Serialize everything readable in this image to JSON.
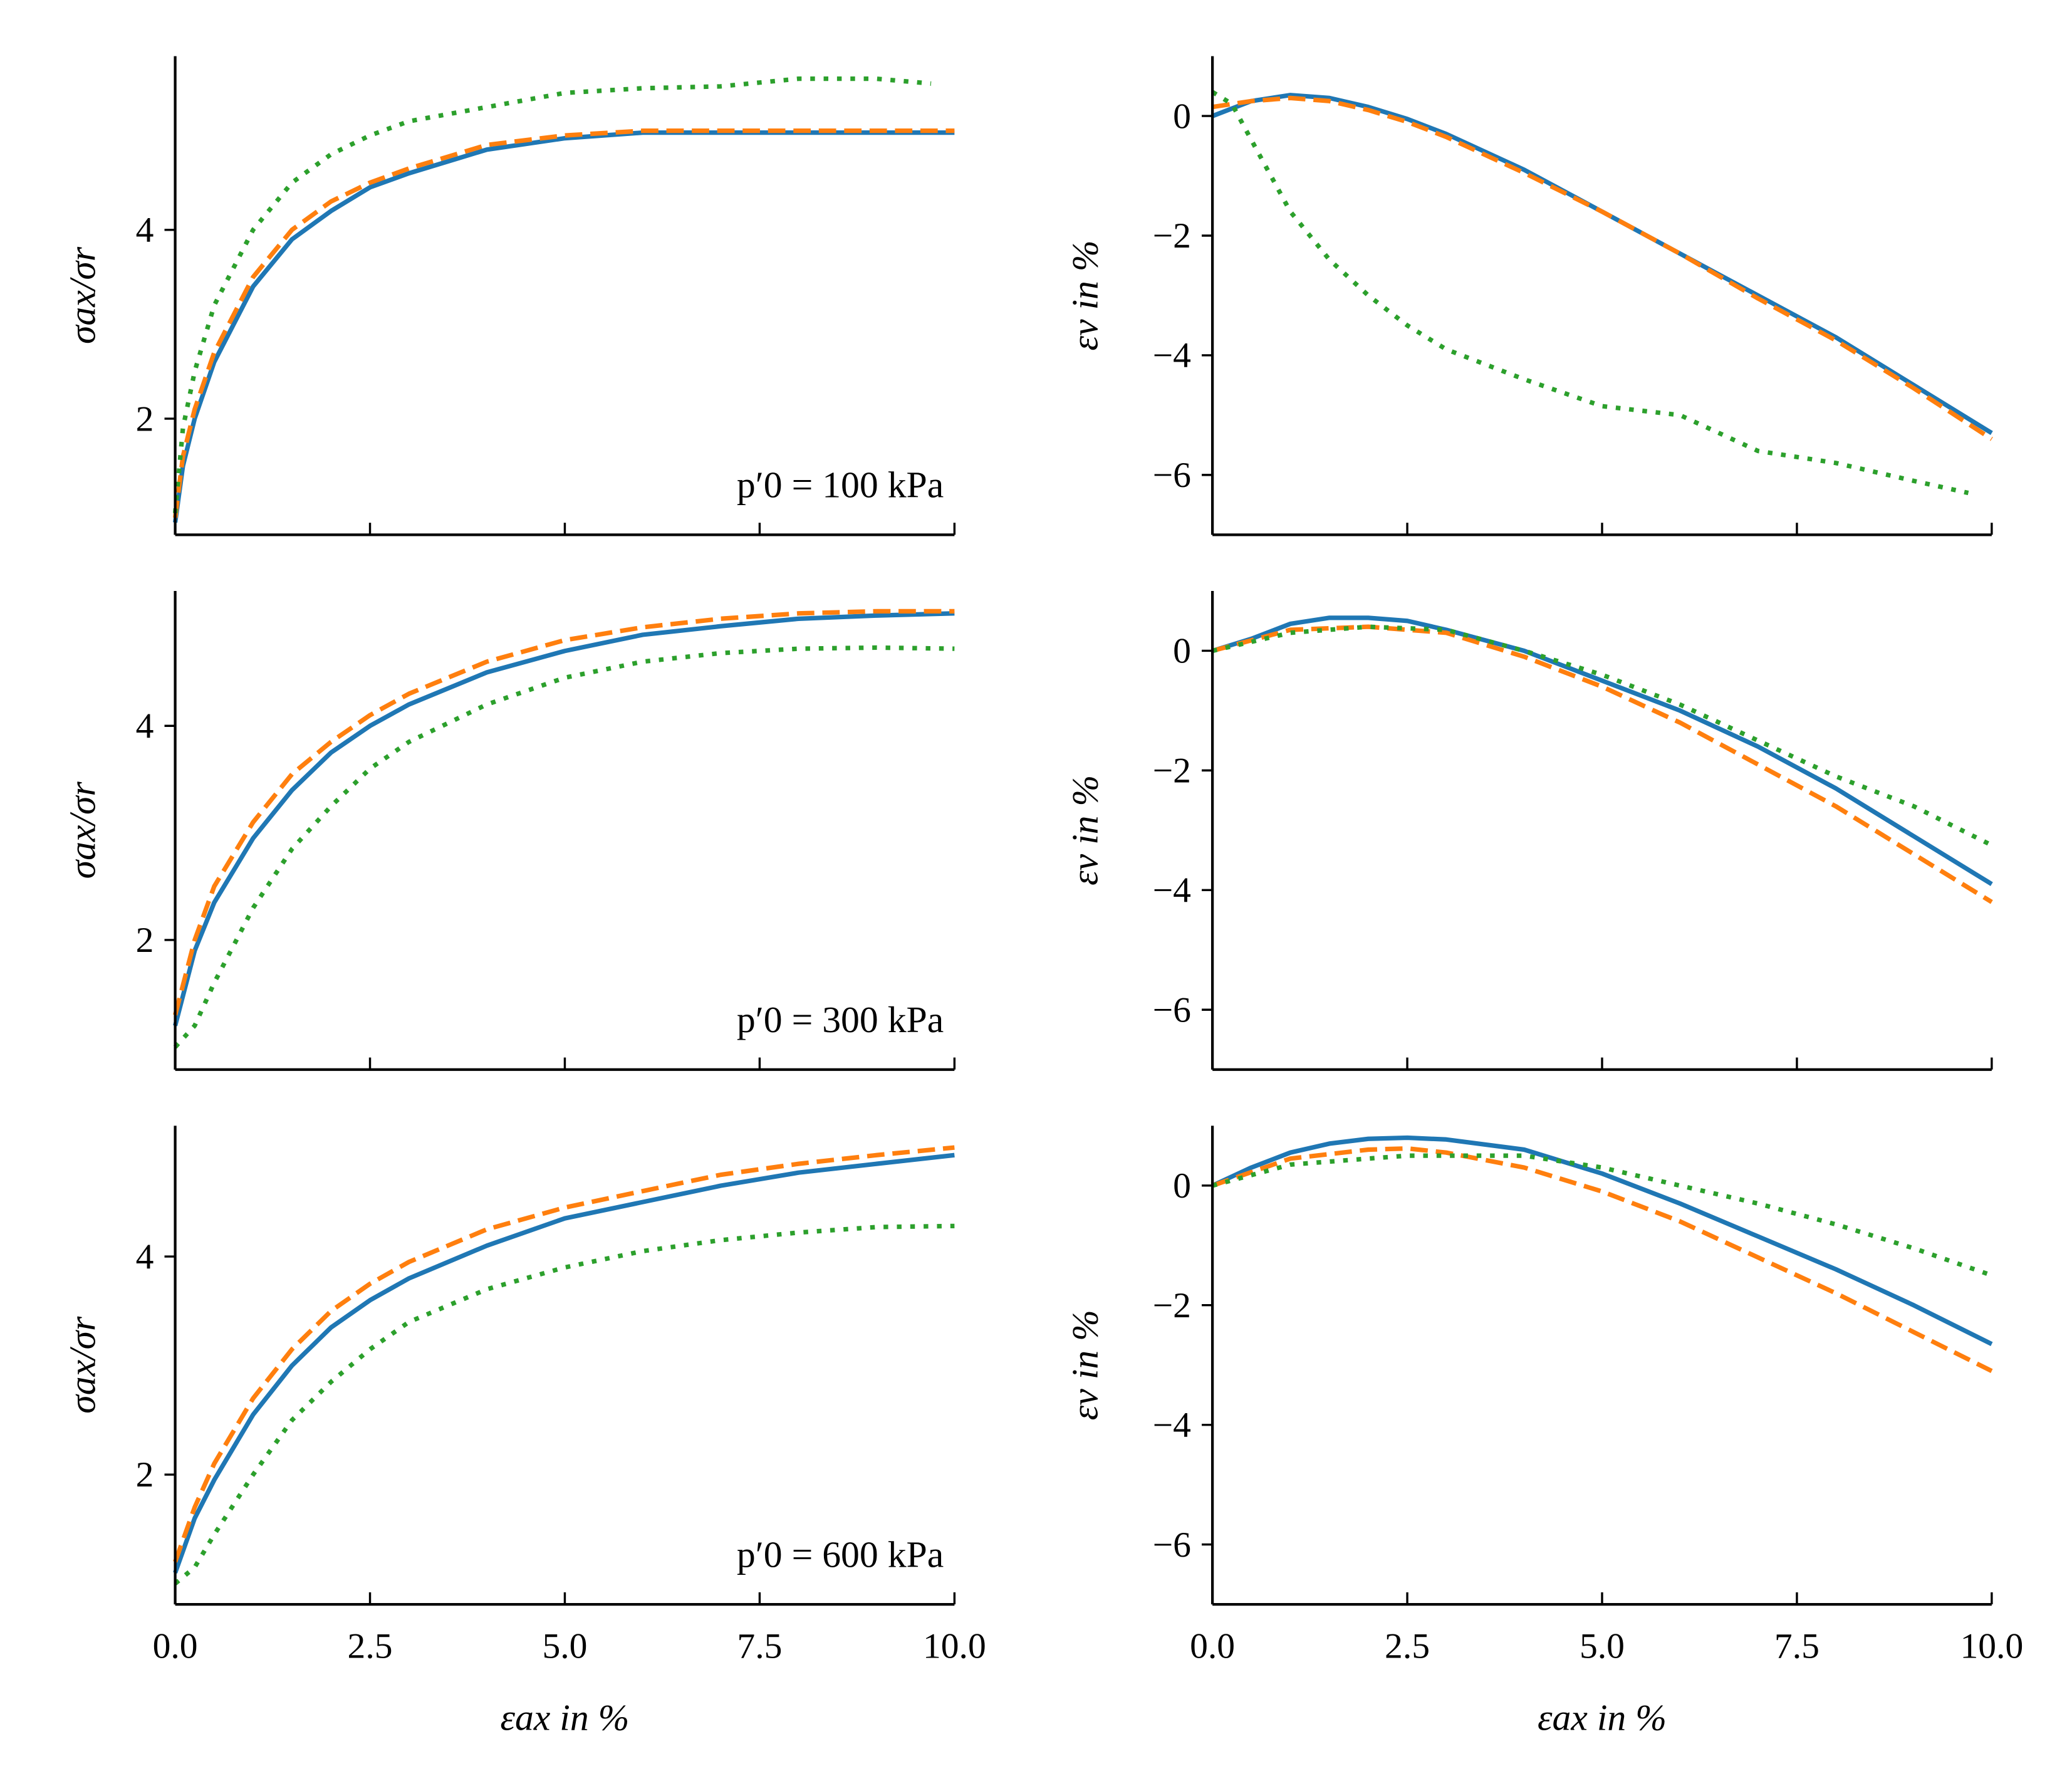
{
  "colors": {
    "series_1": "#1f77b4",
    "series_2": "#ff7f0e",
    "series_3": "#2ca02c"
  },
  "chart_data": [
    {
      "type": "line",
      "panel": "row1-left",
      "ylabel": "σax/σr",
      "xlabel": "",
      "annotation": "p′0 = 100 kPa",
      "xlim": [
        0,
        10
      ],
      "ylim": [
        0.77,
        5.84
      ],
      "xticks": [
        0,
        2.5,
        5,
        7.5,
        10
      ],
      "yticks": [
        2,
        4
      ],
      "show_xticklabels": false,
      "series": [
        {
          "style": "solid",
          "x": [
            0,
            0.1,
            0.25,
            0.5,
            1,
            1.5,
            2,
            2.5,
            3,
            4,
            5,
            6,
            7,
            8,
            9,
            10
          ],
          "y": [
            0.9,
            1.5,
            2.0,
            2.6,
            3.4,
            3.9,
            4.2,
            4.45,
            4.6,
            4.85,
            4.97,
            5.03,
            5.03,
            5.03,
            5.03,
            5.03
          ]
        },
        {
          "style": "dashed",
          "x": [
            0,
            0.1,
            0.25,
            0.5,
            1,
            1.5,
            2,
            2.5,
            3,
            4,
            5,
            6,
            7,
            8,
            9,
            10
          ],
          "y": [
            0.95,
            1.6,
            2.1,
            2.7,
            3.5,
            4.0,
            4.3,
            4.5,
            4.65,
            4.9,
            5.0,
            5.05,
            5.05,
            5.05,
            5.05,
            5.05
          ]
        },
        {
          "style": "dotted",
          "x": [
            0,
            0.1,
            0.25,
            0.5,
            1,
            1.5,
            2,
            2.5,
            3,
            4,
            5,
            6,
            7,
            8,
            9,
            9.7
          ],
          "y": [
            1.0,
            1.9,
            2.5,
            3.2,
            4.0,
            4.5,
            4.8,
            5.0,
            5.15,
            5.3,
            5.45,
            5.5,
            5.52,
            5.6,
            5.6,
            5.55
          ]
        }
      ]
    },
    {
      "type": "line",
      "panel": "row1-right",
      "ylabel": "εv in %",
      "xlabel": "",
      "xlim": [
        0,
        10
      ],
      "ylim": [
        -7,
        1
      ],
      "xticks": [
        0,
        2.5,
        5,
        7.5,
        10
      ],
      "yticks": [
        0,
        -2,
        -4,
        -6
      ],
      "show_xticklabels": false,
      "series": [
        {
          "style": "solid",
          "x": [
            0,
            0.5,
            1,
            1.5,
            2,
            2.5,
            3,
            4,
            5,
            6,
            7,
            8,
            9,
            10
          ],
          "y": [
            0,
            0.25,
            0.35,
            0.3,
            0.15,
            -0.05,
            -0.3,
            -0.9,
            -1.6,
            -2.3,
            -3.0,
            -3.7,
            -4.5,
            -5.3
          ]
        },
        {
          "style": "dashed",
          "x": [
            0,
            0.5,
            1,
            1.5,
            2,
            2.5,
            3,
            4,
            5,
            6,
            7,
            8,
            9,
            10
          ],
          "y": [
            0.15,
            0.25,
            0.3,
            0.25,
            0.1,
            -0.1,
            -0.35,
            -0.95,
            -1.6,
            -2.3,
            -3.05,
            -3.75,
            -4.55,
            -5.4
          ]
        },
        {
          "style": "dotted",
          "x": [
            0,
            0.25,
            0.5,
            1,
            1.5,
            2,
            2.5,
            3,
            4,
            5,
            6,
            7,
            8,
            9,
            9.7
          ],
          "y": [
            0.4,
            0.2,
            -0.4,
            -1.6,
            -2.4,
            -3.0,
            -3.5,
            -3.9,
            -4.4,
            -4.85,
            -5.0,
            -5.6,
            -5.8,
            -6.1,
            -6.3
          ]
        }
      ]
    },
    {
      "type": "line",
      "panel": "row2-left",
      "ylabel": "σax/σr",
      "xlabel": "",
      "annotation": "p′0 = 300 kPa",
      "xlim": [
        0,
        10
      ],
      "ylim": [
        0.79,
        5.26
      ],
      "xticks": [
        0,
        2.5,
        5,
        7.5,
        10
      ],
      "yticks": [
        2,
        4
      ],
      "show_xticklabels": false,
      "series": [
        {
          "style": "solid",
          "x": [
            0,
            0.25,
            0.5,
            1,
            1.5,
            2,
            2.5,
            3,
            4,
            5,
            6,
            7,
            8,
            9,
            10
          ],
          "y": [
            1.2,
            1.9,
            2.35,
            2.95,
            3.4,
            3.75,
            4.0,
            4.2,
            4.5,
            4.7,
            4.85,
            4.93,
            5.0,
            5.03,
            5.05
          ]
        },
        {
          "style": "dashed",
          "x": [
            0,
            0.25,
            0.5,
            1,
            1.5,
            2,
            2.5,
            3,
            4,
            5,
            6,
            7,
            8,
            9,
            10
          ],
          "y": [
            1.3,
            2.0,
            2.5,
            3.1,
            3.55,
            3.85,
            4.1,
            4.3,
            4.6,
            4.8,
            4.92,
            5.0,
            5.05,
            5.07,
            5.07
          ]
        },
        {
          "style": "dotted",
          "x": [
            0,
            0.25,
            0.5,
            1,
            1.5,
            2,
            2.5,
            3,
            4,
            5,
            6,
            7,
            8,
            9,
            10
          ],
          "y": [
            1.0,
            1.2,
            1.6,
            2.3,
            2.85,
            3.25,
            3.6,
            3.85,
            4.2,
            4.45,
            4.6,
            4.68,
            4.72,
            4.73,
            4.72
          ]
        }
      ]
    },
    {
      "type": "line",
      "panel": "row2-right",
      "ylabel": "εv in %",
      "xlabel": "",
      "xlim": [
        0,
        10
      ],
      "ylim": [
        -7,
        1
      ],
      "xticks": [
        0,
        2.5,
        5,
        7.5,
        10
      ],
      "yticks": [
        0,
        -2,
        -4,
        -6
      ],
      "show_xticklabels": false,
      "series": [
        {
          "style": "solid",
          "x": [
            0,
            0.5,
            1,
            1.5,
            2,
            2.5,
            3,
            4,
            5,
            6,
            7,
            8,
            9,
            10
          ],
          "y": [
            0,
            0.2,
            0.45,
            0.55,
            0.55,
            0.5,
            0.35,
            0,
            -0.5,
            -1.0,
            -1.6,
            -2.3,
            -3.1,
            -3.9
          ]
        },
        {
          "style": "dashed",
          "x": [
            0,
            1,
            2,
            3,
            4,
            5,
            6,
            7,
            8,
            9,
            10
          ],
          "y": [
            0,
            0.35,
            0.4,
            0.3,
            -0.1,
            -0.6,
            -1.2,
            -1.9,
            -2.6,
            -3.4,
            -4.2
          ]
        },
        {
          "style": "dotted",
          "x": [
            0,
            1,
            2,
            3,
            4,
            5,
            6,
            7,
            8,
            9,
            10
          ],
          "y": [
            0,
            0.3,
            0.4,
            0.35,
            0,
            -0.4,
            -0.9,
            -1.5,
            -2.1,
            -2.6,
            -3.25
          ]
        }
      ]
    },
    {
      "type": "line",
      "panel": "row3-left",
      "ylabel": "σax/σr",
      "xlabel": "εax in %",
      "annotation": "p′0 = 600 kPa",
      "xlim": [
        0,
        10
      ],
      "ylim": [
        0.81,
        5.2
      ],
      "xticks": [
        0,
        2.5,
        5,
        7.5,
        10
      ],
      "xticklabels": [
        "0.0",
        "2.5",
        "5.0",
        "7.5",
        "10.0"
      ],
      "yticks": [
        2,
        4
      ],
      "show_xticklabels": true,
      "series": [
        {
          "style": "solid",
          "x": [
            0,
            0.25,
            0.5,
            1,
            1.5,
            2,
            2.5,
            3,
            4,
            5,
            6,
            7,
            8,
            9,
            10
          ],
          "y": [
            1.1,
            1.6,
            1.95,
            2.55,
            3.0,
            3.35,
            3.6,
            3.8,
            4.1,
            4.35,
            4.5,
            4.65,
            4.77,
            4.85,
            4.93
          ]
        },
        {
          "style": "dashed",
          "x": [
            0,
            0.25,
            0.5,
            1,
            1.5,
            2,
            2.5,
            3,
            4,
            5,
            6,
            7,
            8,
            9,
            10
          ],
          "y": [
            1.2,
            1.7,
            2.1,
            2.7,
            3.15,
            3.5,
            3.75,
            3.95,
            4.25,
            4.45,
            4.6,
            4.75,
            4.85,
            4.93,
            5.0
          ]
        },
        {
          "style": "dotted",
          "x": [
            0,
            0.25,
            0.5,
            1,
            1.5,
            2,
            2.5,
            3,
            4,
            5,
            6,
            7,
            8,
            9,
            10
          ],
          "y": [
            1.0,
            1.15,
            1.45,
            2.0,
            2.5,
            2.85,
            3.15,
            3.4,
            3.7,
            3.9,
            4.05,
            4.15,
            4.22,
            4.27,
            4.28
          ]
        }
      ]
    },
    {
      "type": "line",
      "panel": "row3-right",
      "ylabel": "εv in %",
      "xlabel": "εax in %",
      "xlim": [
        0,
        10
      ],
      "ylim": [
        -7,
        1
      ],
      "xticks": [
        0,
        2.5,
        5,
        7.5,
        10
      ],
      "xticklabels": [
        "0.0",
        "2.5",
        "5.0",
        "7.5",
        "10.0"
      ],
      "yticks": [
        0,
        -2,
        -4,
        -6
      ],
      "show_xticklabels": true,
      "series": [
        {
          "style": "solid",
          "x": [
            0,
            0.5,
            1,
            1.5,
            2,
            2.5,
            3,
            4,
            5,
            6,
            7,
            8,
            9,
            10
          ],
          "y": [
            0,
            0.3,
            0.55,
            0.7,
            0.78,
            0.8,
            0.77,
            0.6,
            0.2,
            -0.3,
            -0.85,
            -1.4,
            -2.0,
            -2.65
          ]
        },
        {
          "style": "dashed",
          "x": [
            0,
            1,
            2,
            2.5,
            3,
            4,
            5,
            6,
            7,
            8,
            9,
            10
          ],
          "y": [
            0,
            0.45,
            0.6,
            0.62,
            0.55,
            0.3,
            -0.1,
            -0.6,
            -1.2,
            -1.8,
            -2.45,
            -3.1
          ]
        },
        {
          "style": "dotted",
          "x": [
            0,
            1,
            2,
            2.5,
            3,
            4,
            5,
            6,
            7,
            8,
            9,
            10
          ],
          "y": [
            0,
            0.35,
            0.45,
            0.5,
            0.5,
            0.5,
            0.3,
            0,
            -0.3,
            -0.65,
            -1.05,
            -1.5
          ]
        }
      ]
    }
  ]
}
